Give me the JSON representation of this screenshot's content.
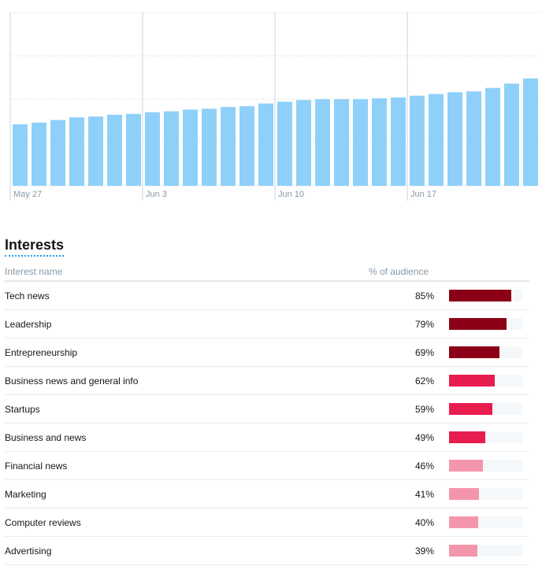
{
  "chart_data": {
    "type": "bar",
    "x_tick_labels": [
      "May 27",
      "Jun 3",
      "Jun 10",
      "Jun 17"
    ],
    "values": [
      71,
      73,
      76,
      79,
      80,
      82,
      83,
      85,
      86,
      88,
      89,
      91,
      92,
      95,
      97,
      99,
      100,
      100,
      100,
      101,
      102,
      104,
      106,
      108,
      109,
      113,
      118,
      124
    ],
    "ylim": [
      0,
      200
    ],
    "grid": true,
    "bar_color": "#8ed0fa"
  },
  "interests": {
    "title": "Interests",
    "columns": {
      "name": "Interest name",
      "percent": "% of audience"
    },
    "rows": [
      {
        "name": "Tech news",
        "percent_label": "85%",
        "value": 85,
        "color": "#8b0017"
      },
      {
        "name": "Leadership",
        "percent_label": "79%",
        "value": 79,
        "color": "#8b0017"
      },
      {
        "name": "Entrepreneurship",
        "percent_label": "69%",
        "value": 69,
        "color": "#8b0017"
      },
      {
        "name": "Business news and general info",
        "percent_label": "62%",
        "value": 62,
        "color": "#e81c4f"
      },
      {
        "name": "Startups",
        "percent_label": "59%",
        "value": 59,
        "color": "#e81c4f"
      },
      {
        "name": "Business and news",
        "percent_label": "49%",
        "value": 49,
        "color": "#e81c4f"
      },
      {
        "name": "Financial news",
        "percent_label": "46%",
        "value": 46,
        "color": "#f496ab"
      },
      {
        "name": "Marketing",
        "percent_label": "41%",
        "value": 41,
        "color": "#f496ab"
      },
      {
        "name": "Computer reviews",
        "percent_label": "40%",
        "value": 40,
        "color": "#f496ab"
      },
      {
        "name": "Advertising",
        "percent_label": "39%",
        "value": 39,
        "color": "#f496ab"
      }
    ]
  }
}
